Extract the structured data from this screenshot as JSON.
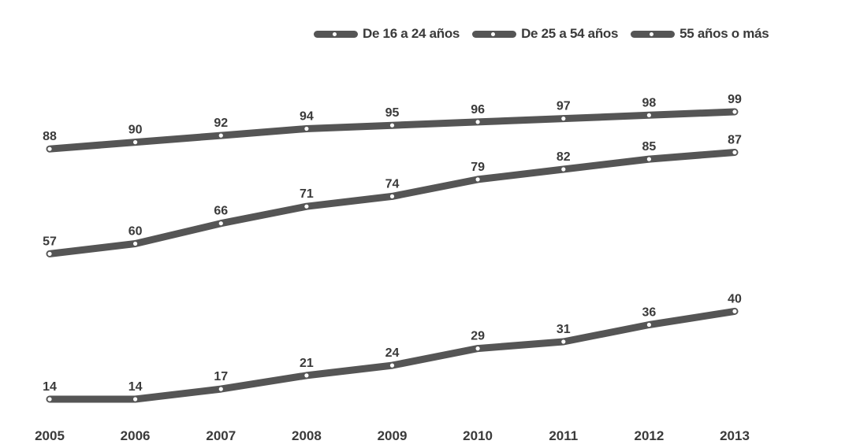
{
  "chart_data": {
    "type": "line",
    "title": "",
    "xlabel": "",
    "ylabel": "",
    "categories": [
      "2005",
      "2006",
      "2007",
      "2008",
      "2009",
      "2010",
      "2011",
      "2012",
      "2013"
    ],
    "ylim": [
      0,
      100
    ],
    "grid": false,
    "legend_position": "top-right",
    "series": [
      {
        "name": "De 16 a 24 años",
        "values": [
          88,
          90,
          92,
          94,
          95,
          96,
          97,
          98,
          99
        ],
        "color": "#555555"
      },
      {
        "name": "De 25 a 54 años",
        "values": [
          57,
          60,
          66,
          71,
          74,
          79,
          82,
          85,
          87
        ],
        "color": "#555555"
      },
      {
        "name": "55 años o más",
        "values": [
          14,
          14,
          17,
          21,
          24,
          29,
          31,
          36,
          40
        ],
        "color": "#555555"
      }
    ]
  }
}
